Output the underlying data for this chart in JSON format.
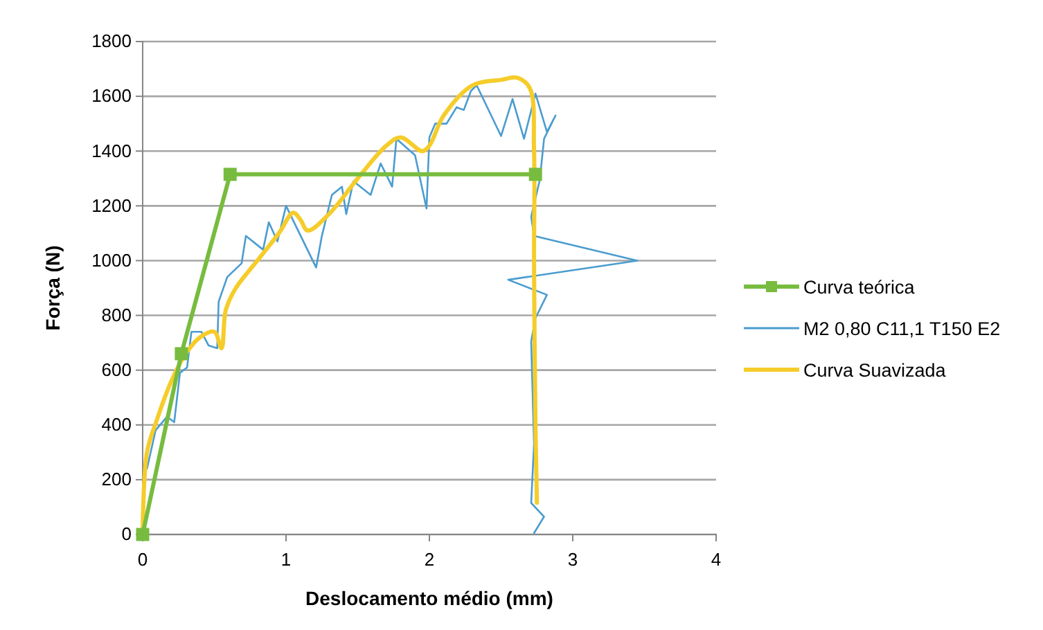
{
  "chart_data": {
    "type": "line",
    "xlabel": "Deslocamento médio (mm)",
    "ylabel": "Força (N)",
    "xlim": [
      0,
      4
    ],
    "xticks": [
      0,
      1,
      2,
      3,
      4
    ],
    "ylim": [
      0,
      1800
    ],
    "yticks": [
      0,
      200,
      400,
      600,
      800,
      1000,
      1200,
      1400,
      1600,
      1800
    ],
    "grid": "y",
    "legend": "right",
    "line_style": "solid",
    "series": [
      {
        "name": "Curva teórica",
        "color": "#77bc3f",
        "marker": "square",
        "x": [
          0,
          0.27,
          0.61,
          2.74
        ],
        "values": [
          0,
          660,
          1315,
          1315
        ]
      },
      {
        "name": "M2 0,80 C11,1 T150 E2",
        "color": "#4a9ccf",
        "marker": "none",
        "x": [
          0,
          0.02,
          0.03,
          0.09,
          0.17,
          0.22,
          0.26,
          0.31,
          0.34,
          0.41,
          0.46,
          0.52,
          0.53,
          0.59,
          0.69,
          0.72,
          0.84,
          0.88,
          0.94,
          1.0,
          1.21,
          1.25,
          1.32,
          1.39,
          1.42,
          1.47,
          1.59,
          1.66,
          1.74,
          1.77,
          1.9,
          1.98,
          2.0,
          2.04,
          2.12,
          2.19,
          2.24,
          2.29,
          2.33,
          2.5,
          2.58,
          2.66,
          2.74,
          2.82,
          2.88,
          2.8,
          2.77,
          2.71,
          2.73,
          3.45,
          2.55,
          2.82,
          2.74,
          2.71,
          2.73,
          2.71,
          2.8,
          2.73
        ],
        "values": [
          0,
          280,
          240,
          380,
          430,
          410,
          590,
          610,
          740,
          740,
          690,
          680,
          850,
          940,
          990,
          1090,
          1040,
          1140,
          1070,
          1200,
          975,
          1090,
          1240,
          1270,
          1170,
          1290,
          1240,
          1355,
          1270,
          1445,
          1385,
          1190,
          1450,
          1500,
          1500,
          1560,
          1550,
          1620,
          1640,
          1455,
          1590,
          1445,
          1610,
          1470,
          1530,
          1445,
          1295,
          1160,
          1090,
          1000,
          930,
          875,
          790,
          705,
          330,
          115,
          65,
          5
        ]
      },
      {
        "name": "Curva Suavizada",
        "color": "#f5cc2a",
        "marker": "none",
        "x": [
          0,
          0.03,
          0.1,
          0.2,
          0.3,
          0.4,
          0.5,
          0.55,
          0.58,
          0.65,
          0.8,
          0.95,
          1.05,
          1.1,
          1.15,
          1.3,
          1.5,
          1.7,
          1.8,
          1.95,
          2.0,
          2.1,
          2.3,
          2.5,
          2.61,
          2.7,
          2.73,
          2.73,
          2.74,
          2.75
        ],
        "values": [
          0,
          300,
          420,
          560,
          660,
          720,
          740,
          680,
          820,
          900,
          1000,
          1100,
          1175,
          1150,
          1110,
          1170,
          1300,
          1420,
          1450,
          1400,
          1420,
          1530,
          1640,
          1660,
          1668,
          1630,
          1400,
          1000,
          400,
          116
        ]
      }
    ]
  }
}
